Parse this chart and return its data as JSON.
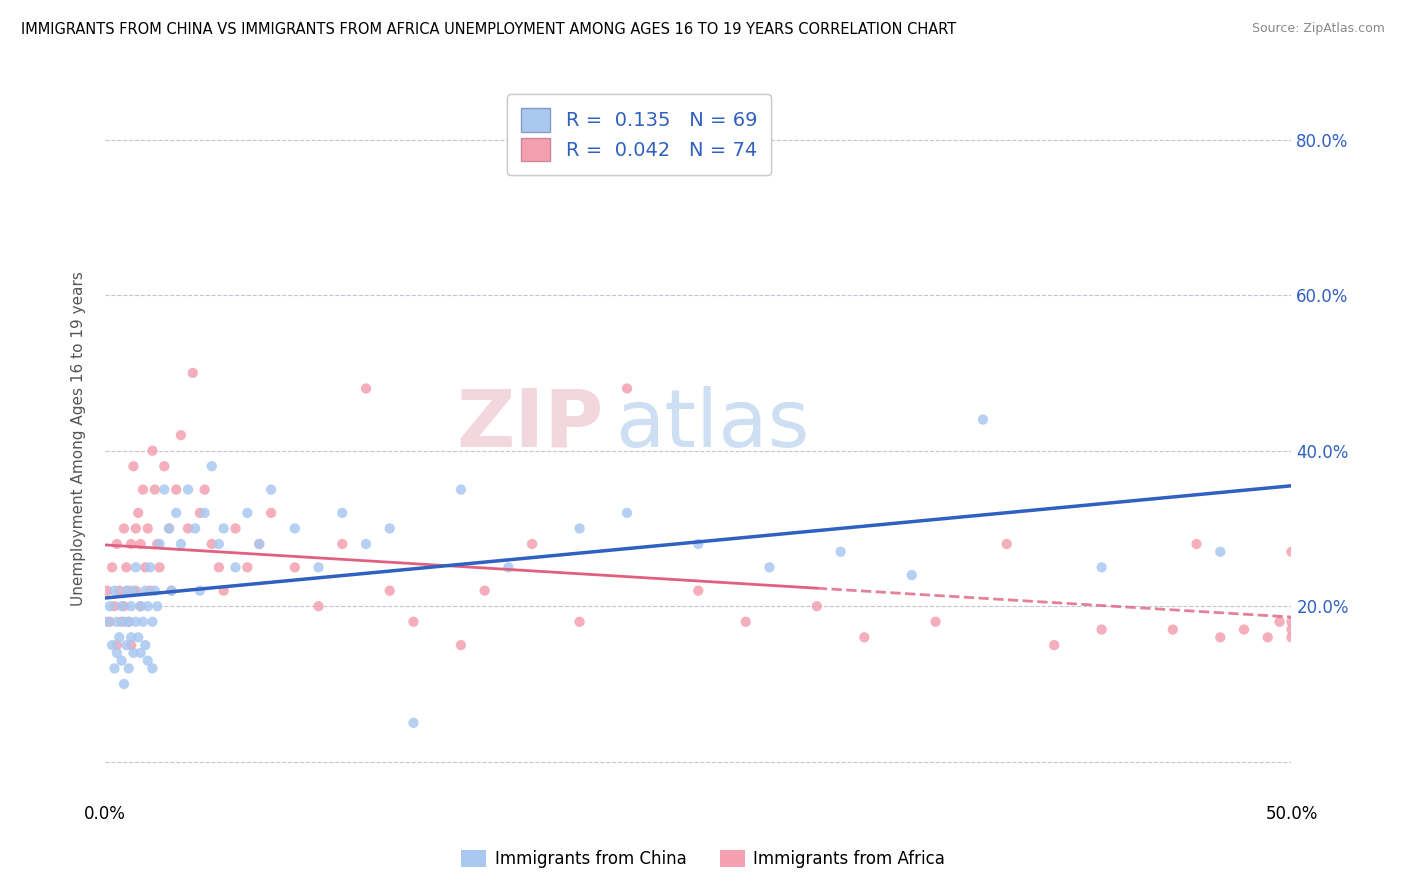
{
  "title": "IMMIGRANTS FROM CHINA VS IMMIGRANTS FROM AFRICA UNEMPLOYMENT AMONG AGES 16 TO 19 YEARS CORRELATION CHART",
  "source": "Source: ZipAtlas.com",
  "ylabel": "Unemployment Among Ages 16 to 19 years",
  "ytick_values": [
    0.0,
    0.2,
    0.4,
    0.6,
    0.8
  ],
  "ytick_labels_right": [
    "",
    "20.0%",
    "40.0%",
    "60.0%",
    "80.0%"
  ],
  "xlim": [
    0.0,
    0.5
  ],
  "ylim": [
    -0.05,
    0.88
  ],
  "china_color": "#a8c8f0",
  "africa_color": "#f4a0b0",
  "china_line_color": "#3060c0",
  "africa_line_color": "#e06080",
  "china_R": 0.135,
  "china_N": 69,
  "africa_R": 0.042,
  "africa_N": 74,
  "watermark_text": "ZIPatlas",
  "china_x": [
    0.001,
    0.002,
    0.003,
    0.004,
    0.004,
    0.005,
    0.005,
    0.006,
    0.007,
    0.007,
    0.008,
    0.008,
    0.009,
    0.009,
    0.01,
    0.01,
    0.011,
    0.011,
    0.012,
    0.012,
    0.013,
    0.013,
    0.014,
    0.015,
    0.015,
    0.016,
    0.017,
    0.017,
    0.018,
    0.018,
    0.019,
    0.02,
    0.02,
    0.021,
    0.022,
    0.023,
    0.025,
    0.027,
    0.028,
    0.03,
    0.032,
    0.035,
    0.038,
    0.04,
    0.042,
    0.045,
    0.048,
    0.05,
    0.055,
    0.06,
    0.065,
    0.07,
    0.08,
    0.09,
    0.1,
    0.11,
    0.12,
    0.13,
    0.15,
    0.17,
    0.2,
    0.22,
    0.25,
    0.28,
    0.31,
    0.34,
    0.37,
    0.42,
    0.47
  ],
  "china_y": [
    0.18,
    0.2,
    0.15,
    0.22,
    0.12,
    0.18,
    0.14,
    0.16,
    0.2,
    0.13,
    0.18,
    0.1,
    0.22,
    0.15,
    0.18,
    0.12,
    0.2,
    0.16,
    0.14,
    0.22,
    0.18,
    0.25,
    0.16,
    0.2,
    0.14,
    0.18,
    0.22,
    0.15,
    0.2,
    0.13,
    0.25,
    0.18,
    0.12,
    0.22,
    0.2,
    0.28,
    0.35,
    0.3,
    0.22,
    0.32,
    0.28,
    0.35,
    0.3,
    0.22,
    0.32,
    0.38,
    0.28,
    0.3,
    0.25,
    0.32,
    0.28,
    0.35,
    0.3,
    0.25,
    0.32,
    0.28,
    0.3,
    0.05,
    0.35,
    0.25,
    0.3,
    0.32,
    0.28,
    0.25,
    0.27,
    0.24,
    0.44,
    0.25,
    0.27
  ],
  "africa_x": [
    0.001,
    0.002,
    0.003,
    0.004,
    0.005,
    0.005,
    0.006,
    0.007,
    0.008,
    0.008,
    0.009,
    0.01,
    0.01,
    0.011,
    0.011,
    0.012,
    0.013,
    0.013,
    0.014,
    0.015,
    0.015,
    0.016,
    0.017,
    0.018,
    0.019,
    0.02,
    0.021,
    0.022,
    0.023,
    0.025,
    0.027,
    0.028,
    0.03,
    0.032,
    0.035,
    0.037,
    0.04,
    0.042,
    0.045,
    0.048,
    0.05,
    0.055,
    0.06,
    0.065,
    0.07,
    0.08,
    0.09,
    0.1,
    0.11,
    0.12,
    0.13,
    0.15,
    0.16,
    0.18,
    0.2,
    0.22,
    0.25,
    0.27,
    0.3,
    0.32,
    0.35,
    0.38,
    0.4,
    0.42,
    0.45,
    0.46,
    0.47,
    0.48,
    0.49,
    0.495,
    0.5,
    0.5,
    0.5,
    0.5
  ],
  "africa_y": [
    0.22,
    0.18,
    0.25,
    0.2,
    0.28,
    0.15,
    0.22,
    0.18,
    0.3,
    0.2,
    0.25,
    0.18,
    0.22,
    0.28,
    0.15,
    0.38,
    0.3,
    0.22,
    0.32,
    0.28,
    0.2,
    0.35,
    0.25,
    0.3,
    0.22,
    0.4,
    0.35,
    0.28,
    0.25,
    0.38,
    0.3,
    0.22,
    0.35,
    0.42,
    0.3,
    0.5,
    0.32,
    0.35,
    0.28,
    0.25,
    0.22,
    0.3,
    0.25,
    0.28,
    0.32,
    0.25,
    0.2,
    0.28,
    0.48,
    0.22,
    0.18,
    0.15,
    0.22,
    0.28,
    0.18,
    0.48,
    0.22,
    0.18,
    0.2,
    0.16,
    0.18,
    0.28,
    0.15,
    0.17,
    0.17,
    0.28,
    0.16,
    0.17,
    0.16,
    0.18,
    0.27,
    0.17,
    0.16,
    0.18
  ]
}
